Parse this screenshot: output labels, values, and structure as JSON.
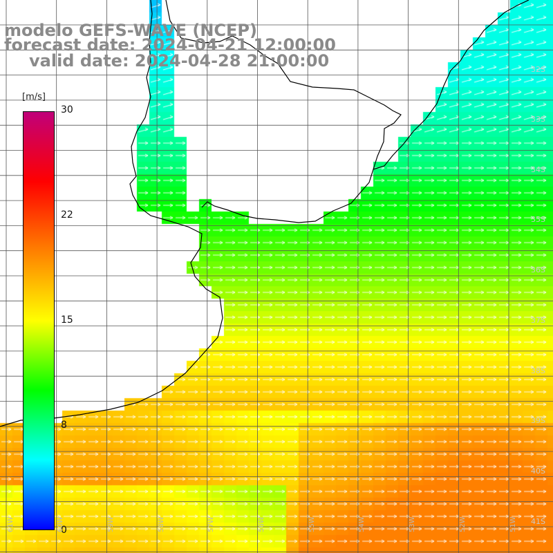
{
  "title": {
    "line1": "modelo GEFS-WAVE (NCEP)",
    "line2": "forecast date: 2024-04-21 12:00:00",
    "line3": "valid date: 2024-04-28 21:00:00"
  },
  "colorbar": {
    "units": "[m/s]",
    "min": 0,
    "max": 30,
    "labels": [
      "30",
      "22",
      "15",
      "8",
      "0"
    ],
    "stops": [
      "#0000ff",
      "#00ffff",
      "#00ff00",
      "#ffff00",
      "#ff8000",
      "#ff0000",
      "#c0007a"
    ]
  },
  "lat_labels": [
    "32S",
    "33S",
    "34S",
    "35S",
    "36S",
    "37S",
    "38S",
    "39S",
    "40S",
    "41S"
  ],
  "lon_labels": [
    "61W",
    "60W",
    "59W",
    "58W",
    "57W",
    "56W",
    "55W",
    "54W",
    "53W",
    "52W",
    "51W"
  ],
  "field_colors": {
    "land": "#ffffff",
    "coast": "#000000",
    "grid": "#555555",
    "arrows": "#ffffff"
  }
}
